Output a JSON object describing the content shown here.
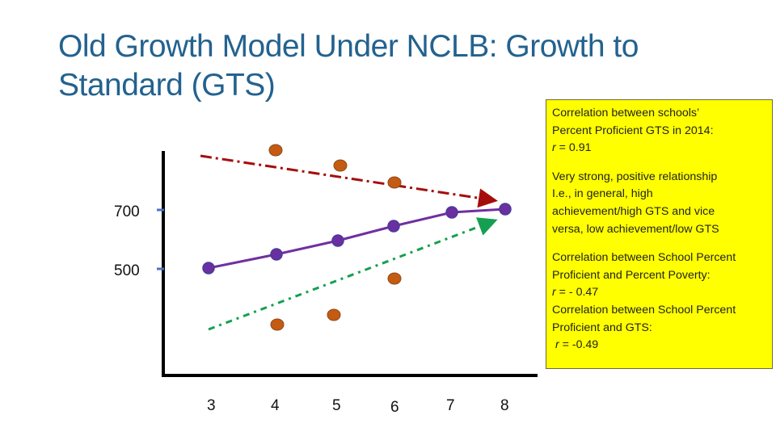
{
  "title": {
    "line1": "Old Growth Model Under NCLB: Growth to",
    "line2": "Standard (GTS)"
  },
  "y_ticks": [
    "700",
    "500"
  ],
  "x_ticks": [
    "3",
    "4",
    "5",
    "6",
    "7",
    "8"
  ],
  "colors": {
    "title": "#23628f",
    "growth_line": "#7030a0",
    "points_orange": "#c55a11",
    "trend_down": "#a50d0d",
    "trend_up": "#14a050",
    "note_bg": "#ffff00"
  },
  "note": {
    "p1": [
      "Correlation between schools’",
      "Percent Proficient GTS in 2014:"
    ],
    "p1_r_label": "r",
    "p1_r_value": " = 0.91",
    "p2": [
      "Very strong, positive relationship",
      "I.e., in general, high",
      "achievement/high GTS and vice",
      "versa, low achievement/low GTS"
    ],
    "p3": [
      "Correlation between School Percent",
      "Proficient and Percent Poverty:"
    ],
    "p3_r_label": "r",
    "p3_r_value": " = - 0.47",
    "p4": [
      "Correlation between School Percent",
      "Proficient and GTS:"
    ],
    "p4_r_label": "r",
    "p4_r_value": " = -0.49"
  }
}
